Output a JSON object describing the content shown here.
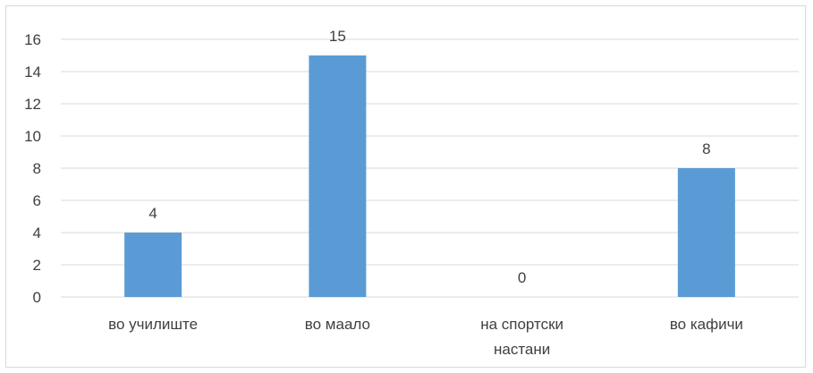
{
  "chart_data": {
    "type": "bar",
    "categories": [
      [
        "во училиште"
      ],
      [
        "во маало"
      ],
      [
        "на спортски",
        "настани"
      ],
      [
        "во кафичи"
      ]
    ],
    "values": [
      4,
      15,
      0,
      8
    ],
    "data_labels": [
      "4",
      "15",
      "0",
      "8"
    ],
    "ylim": [
      0,
      16
    ],
    "yticks": [
      "0",
      "2",
      "4",
      "6",
      "8",
      "10",
      "12",
      "14",
      "16"
    ],
    "grid": true,
    "legend": "none",
    "colors": {
      "bar": "#5b9bd5",
      "grid": "#d9d9d9",
      "text": "#404040"
    }
  }
}
